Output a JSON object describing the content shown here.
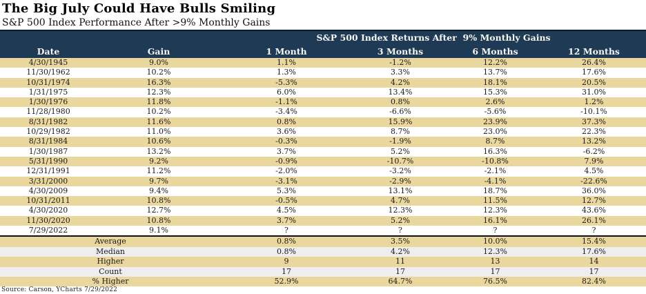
{
  "title": "The Big July Could Have Bulls Smiling",
  "subtitle": "S&P 500 Index Performance After >9% Monthly Gains",
  "source": "Source: Carson, YCharts 7/29/2022",
  "colors": {
    "header_navy": "#1f3a55",
    "row_tan": "#e9d79e",
    "row_gray": "#eeeeee",
    "top_border": "#0e1b2a"
  },
  "chart_data": {
    "type": "table",
    "title": "The Big July Could Have Bulls Smiling",
    "subtitle": "S&P 500 Index Performance After >9% Monthly Gains",
    "banner": "S&P 500 Index Returns After  9% Monthly Gains",
    "columns": [
      "Date",
      "Gain",
      "1 Month",
      "3 Months",
      "6 Months",
      "12 Months"
    ],
    "rows": [
      [
        "4/30/1945",
        "9.0%",
        "1.1%",
        "-1.2%",
        "12.2%",
        "26.4%"
      ],
      [
        "11/30/1962",
        "10.2%",
        "1.3%",
        "3.3%",
        "13.7%",
        "17.6%"
      ],
      [
        "10/31/1974",
        "16.3%",
        "-5.3%",
        "4.2%",
        "18.1%",
        "20.5%"
      ],
      [
        "1/31/1975",
        "12.3%",
        "6.0%",
        "13.4%",
        "15.3%",
        "31.0%"
      ],
      [
        "1/30/1976",
        "11.8%",
        "-1.1%",
        "0.8%",
        "2.6%",
        "1.2%"
      ],
      [
        "11/28/1980",
        "10.2%",
        "-3.4%",
        "-6.6%",
        "-5.6%",
        "-10.1%"
      ],
      [
        "8/31/1982",
        "11.6%",
        "0.8%",
        "15.9%",
        "23.9%",
        "37.3%"
      ],
      [
        "10/29/1982",
        "11.0%",
        "3.6%",
        "8.7%",
        "23.0%",
        "22.3%"
      ],
      [
        "8/31/1984",
        "10.6%",
        "-0.3%",
        "-1.9%",
        "8.7%",
        "13.2%"
      ],
      [
        "1/30/1987",
        "13.2%",
        "3.7%",
        "5.2%",
        "16.3%",
        "-6.2%"
      ],
      [
        "5/31/1990",
        "9.2%",
        "-0.9%",
        "-10.7%",
        "-10.8%",
        "7.9%"
      ],
      [
        "12/31/1991",
        "11.2%",
        "-2.0%",
        "-3.2%",
        "-2.1%",
        "4.5%"
      ],
      [
        "3/31/2000",
        "9.7%",
        "-3.1%",
        "-2.9%",
        "-4.1%",
        "-22.6%"
      ],
      [
        "4/30/2009",
        "9.4%",
        "5.3%",
        "13.1%",
        "18.7%",
        "36.0%"
      ],
      [
        "10/31/2011",
        "10.8%",
        "-0.5%",
        "4.7%",
        "11.5%",
        "12.7%"
      ],
      [
        "4/30/2020",
        "12.7%",
        "4.5%",
        "12.3%",
        "12.3%",
        "43.6%"
      ],
      [
        "11/30/2020",
        "10.8%",
        "3.7%",
        "5.2%",
        "16.1%",
        "26.1%"
      ],
      [
        "7/29/2022",
        "9.1%",
        "?",
        "?",
        "?",
        "?"
      ]
    ],
    "summary": [
      [
        "Average",
        "0.8%",
        "3.5%",
        "10.0%",
        "15.4%"
      ],
      [
        "Median",
        "0.8%",
        "4.2%",
        "12.3%",
        "17.6%"
      ],
      [
        "Higher",
        "9",
        "11",
        "13",
        "14"
      ],
      [
        "Count",
        "17",
        "17",
        "17",
        "17"
      ],
      [
        "% Higher",
        "52.9%",
        "64.7%",
        "76.5%",
        "82.4%"
      ]
    ]
  }
}
